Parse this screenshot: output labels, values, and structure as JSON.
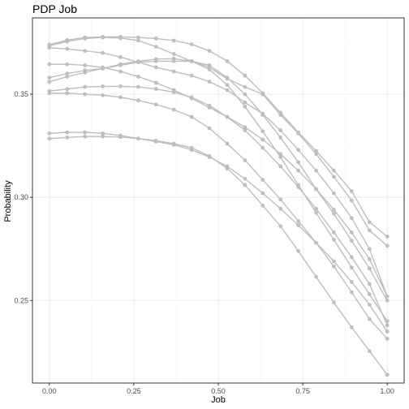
{
  "chart_data": {
    "type": "line",
    "title": "PDP Job",
    "xlabel": "Job",
    "ylabel": "Probability",
    "xlim": [
      -0.05,
      1.05
    ],
    "ylim": [
      0.21,
      0.387
    ],
    "x_ticks": [
      0.0,
      0.25,
      0.5,
      0.75,
      1.0
    ],
    "x_tick_labels": [
      "0.00",
      "0.25",
      "0.50",
      "0.75",
      "1.00"
    ],
    "y_ticks": [
      0.25,
      0.3,
      0.35
    ],
    "y_tick_labels": [
      "0.25",
      "0.30",
      "0.35"
    ],
    "grid": true,
    "legend": "none",
    "colors": {
      "line": "#bebebe",
      "point": "#bebebe",
      "panel_border": "#333333",
      "grid_major": "#ebebeb",
      "grid_minor": "#f5f5f5"
    },
    "x": [
      0.0,
      0.0526,
      0.1053,
      0.1579,
      0.2105,
      0.2632,
      0.3158,
      0.3684,
      0.4211,
      0.4737,
      0.5263,
      0.5789,
      0.6316,
      0.6842,
      0.7368,
      0.7895,
      0.8421,
      0.8947,
      0.9474,
      1.0
    ],
    "series": [
      {
        "values": [
          0.374,
          0.3762,
          0.3775,
          0.3778,
          0.3778,
          0.3775,
          0.377,
          0.376,
          0.3742,
          0.371,
          0.366,
          0.359,
          0.3505,
          0.341,
          0.3315,
          0.3225,
          0.313,
          0.303,
          0.288,
          0.281
        ]
      },
      {
        "values": [
          0.3735,
          0.3755,
          0.377,
          0.3775,
          0.3772,
          0.376,
          0.373,
          0.3695,
          0.366,
          0.363,
          0.3575,
          0.3535,
          0.35,
          0.34,
          0.331,
          0.321,
          0.31,
          0.2985,
          0.284,
          0.2765
        ]
      },
      {
        "values": [
          0.3725,
          0.372,
          0.371,
          0.37,
          0.368,
          0.3655,
          0.363,
          0.361,
          0.359,
          0.356,
          0.352,
          0.346,
          0.3405,
          0.3325,
          0.323,
          0.313,
          0.302,
          0.29,
          0.275,
          0.252
        ]
      },
      {
        "values": [
          0.3645,
          0.3645,
          0.364,
          0.363,
          0.361,
          0.3585,
          0.3555,
          0.352,
          0.348,
          0.3435,
          0.339,
          0.334,
          0.328,
          0.321,
          0.313,
          0.304,
          0.294,
          0.283,
          0.27,
          0.252
        ]
      },
      {
        "values": [
          0.358,
          0.36,
          0.3615,
          0.3625,
          0.364,
          0.3655,
          0.366,
          0.366,
          0.366,
          0.364,
          0.358,
          0.35,
          0.34,
          0.329,
          0.317,
          0.304,
          0.292,
          0.279,
          0.2655,
          0.25
        ]
      },
      {
        "values": [
          0.356,
          0.3585,
          0.3605,
          0.3625,
          0.3645,
          0.366,
          0.367,
          0.3672,
          0.366,
          0.362,
          0.3545,
          0.344,
          0.332,
          0.3195,
          0.306,
          0.2925,
          0.2795,
          0.266,
          0.253,
          0.24
        ]
      },
      {
        "values": [
          0.3515,
          0.3525,
          0.3535,
          0.3538,
          0.3538,
          0.3535,
          0.3525,
          0.351,
          0.3485,
          0.3445,
          0.339,
          0.3325,
          0.324,
          0.315,
          0.305,
          0.2945,
          0.283,
          0.271,
          0.258,
          0.238
        ]
      },
      {
        "values": [
          0.3505,
          0.3505,
          0.35,
          0.3495,
          0.3485,
          0.347,
          0.345,
          0.3425,
          0.339,
          0.3335,
          0.326,
          0.318,
          0.3085,
          0.299,
          0.2885,
          0.278,
          0.2665,
          0.254,
          0.241,
          0.2315
        ]
      },
      {
        "values": [
          0.331,
          0.3315,
          0.3315,
          0.331,
          0.33,
          0.3285,
          0.327,
          0.3255,
          0.323,
          0.3195,
          0.315,
          0.309,
          0.302,
          0.2945,
          0.2865,
          0.278,
          0.269,
          0.259,
          0.248,
          0.235
        ]
      },
      {
        "values": [
          0.3285,
          0.329,
          0.3295,
          0.3295,
          0.3292,
          0.3285,
          0.3275,
          0.326,
          0.324,
          0.32,
          0.314,
          0.306,
          0.296,
          0.286,
          0.274,
          0.2615,
          0.249,
          0.237,
          0.2255,
          0.214
        ]
      }
    ]
  }
}
